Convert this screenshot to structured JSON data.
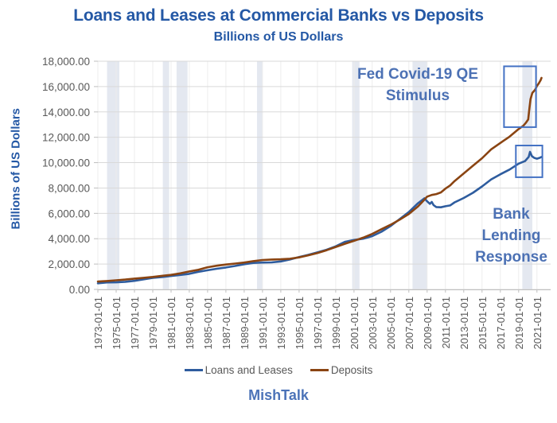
{
  "header": {
    "title": "Loans and Leases at Commercial Banks vs Deposits",
    "subtitle": "Billions of US Dollars"
  },
  "y_axis_title": "Billions of US Dollars",
  "annotations": {
    "fed_qe": "Fed Covid-19 QE\nStimulus",
    "bank_lending": "Bank\nLending\nResponse"
  },
  "footer": {
    "brand": "MishTalk"
  },
  "chart_data": {
    "type": "line",
    "title": "Loans and Leases at Commercial Banks vs Deposits",
    "subtitle": "Billions of US Dollars",
    "xlabel": "",
    "ylabel": "Billions of US Dollars",
    "ylim": [
      0,
      18000
    ],
    "y_tick_step": 2000,
    "y_tick_labels": [
      "0.00",
      "2,000.00",
      "4,000.00",
      "6,000.00",
      "8,000.00",
      "10,000.00",
      "12,000.00",
      "14,000.00",
      "16,000.00",
      "18,000.00"
    ],
    "x_tick_labels": [
      "1973-01-01",
      "1975-01-01",
      "1977-01-01",
      "1979-01-01",
      "1981-01-01",
      "1983-01-01",
      "1985-01-01",
      "1987-01-01",
      "1989-01-01",
      "1991-01-01",
      "1993-01-01",
      "1995-01-01",
      "1997-01-01",
      "1999-01-01",
      "2001-01-01",
      "2003-01-01",
      "2005-01-01",
      "2007-01-01",
      "2009-01-01",
      "2011-01-01",
      "2013-01-01",
      "2015-01-01",
      "2017-01-01",
      "2019-01-01",
      "2021-01-01"
    ],
    "x_tick_start_year": 1973,
    "x_tick_step_years": 2,
    "grid": true,
    "legend_position": "bottom",
    "recession_bands": [
      [
        1974.0,
        1975.35
      ],
      [
        1980.1,
        1980.8
      ],
      [
        1981.6,
        1982.8
      ],
      [
        1990.4,
        1991.0
      ],
      [
        2000.8,
        2001.6
      ],
      [
        2007.4,
        2009.0
      ],
      [
        2019.4,
        2020.5
      ]
    ],
    "callout_boxes": [
      {
        "name": "fed-qe-deposits-spike",
        "x1": 2017.4,
        "x2": 2020.9,
        "y1": 12800,
        "y2": 17600
      },
      {
        "name": "bank-lending-loans-spike",
        "x1": 2018.7,
        "x2": 2021.6,
        "y1": 8850,
        "y2": 11350
      }
    ],
    "series": [
      {
        "name": "Loans and Leases",
        "color": "#2E5C9E",
        "points": [
          [
            1973,
            480
          ],
          [
            1974,
            555
          ],
          [
            1975,
            560
          ],
          [
            1976,
            600
          ],
          [
            1977,
            680
          ],
          [
            1978,
            790
          ],
          [
            1979,
            910
          ],
          [
            1980,
            975
          ],
          [
            1981,
            1060
          ],
          [
            1982,
            1140
          ],
          [
            1983,
            1230
          ],
          [
            1984,
            1390
          ],
          [
            1985,
            1510
          ],
          [
            1986,
            1630
          ],
          [
            1987,
            1730
          ],
          [
            1988,
            1850
          ],
          [
            1989,
            1990
          ],
          [
            1990,
            2090
          ],
          [
            1991,
            2120
          ],
          [
            1992,
            2130
          ],
          [
            1993,
            2210
          ],
          [
            1994,
            2360
          ],
          [
            1995,
            2550
          ],
          [
            1996,
            2730
          ],
          [
            1997,
            2920
          ],
          [
            1998,
            3130
          ],
          [
            1999,
            3400
          ],
          [
            2000,
            3750
          ],
          [
            2001,
            3900
          ],
          [
            2002,
            4000
          ],
          [
            2003,
            4200
          ],
          [
            2004,
            4550
          ],
          [
            2005,
            5000
          ],
          [
            2006,
            5550
          ],
          [
            2007,
            6100
          ],
          [
            2008,
            6800
          ],
          [
            2008.7,
            7190
          ],
          [
            2009,
            6950
          ],
          [
            2009.3,
            6750
          ],
          [
            2009.5,
            6900
          ],
          [
            2009.7,
            6650
          ],
          [
            2010,
            6500
          ],
          [
            2010.5,
            6480
          ],
          [
            2011,
            6560
          ],
          [
            2011.5,
            6620
          ],
          [
            2012,
            6870
          ],
          [
            2013,
            7210
          ],
          [
            2014,
            7620
          ],
          [
            2015,
            8120
          ],
          [
            2016,
            8680
          ],
          [
            2017,
            9080
          ],
          [
            2018,
            9450
          ],
          [
            2019,
            9920
          ],
          [
            2019.7,
            10120
          ],
          [
            2020.1,
            10450
          ],
          [
            2020.25,
            10850
          ],
          [
            2020.45,
            10520
          ],
          [
            2020.7,
            10380
          ],
          [
            2021,
            10310
          ],
          [
            2021.3,
            10380
          ],
          [
            2021.5,
            10450
          ]
        ]
      },
      {
        "name": "Deposits",
        "color": "#8A4412",
        "points": [
          [
            1973,
            620
          ],
          [
            1974,
            665
          ],
          [
            1975,
            720
          ],
          [
            1976,
            780
          ],
          [
            1977,
            850
          ],
          [
            1978,
            915
          ],
          [
            1979,
            985
          ],
          [
            1980,
            1070
          ],
          [
            1981,
            1150
          ],
          [
            1982,
            1270
          ],
          [
            1983,
            1420
          ],
          [
            1984,
            1550
          ],
          [
            1985,
            1750
          ],
          [
            1986,
            1870
          ],
          [
            1987,
            1960
          ],
          [
            1988,
            2040
          ],
          [
            1989,
            2120
          ],
          [
            1990,
            2230
          ],
          [
            1991,
            2320
          ],
          [
            1992,
            2360
          ],
          [
            1993,
            2380
          ],
          [
            1994,
            2420
          ],
          [
            1995,
            2530
          ],
          [
            1996,
            2690
          ],
          [
            1997,
            2870
          ],
          [
            1998,
            3090
          ],
          [
            1999,
            3350
          ],
          [
            2000,
            3600
          ],
          [
            2001,
            3830
          ],
          [
            2002,
            4080
          ],
          [
            2003,
            4380
          ],
          [
            2004,
            4750
          ],
          [
            2005,
            5100
          ],
          [
            2006,
            5500
          ],
          [
            2007,
            5950
          ],
          [
            2008,
            6550
          ],
          [
            2008.7,
            7080
          ],
          [
            2009,
            7320
          ],
          [
            2009.5,
            7450
          ],
          [
            2010,
            7520
          ],
          [
            2010.5,
            7650
          ],
          [
            2011,
            7950
          ],
          [
            2011.5,
            8200
          ],
          [
            2012,
            8550
          ],
          [
            2013,
            9150
          ],
          [
            2014,
            9750
          ],
          [
            2015,
            10350
          ],
          [
            2016,
            11050
          ],
          [
            2017,
            11550
          ],
          [
            2018,
            12050
          ],
          [
            2019,
            12650
          ],
          [
            2019.5,
            12900
          ],
          [
            2019.8,
            13150
          ],
          [
            2020.05,
            13400
          ],
          [
            2020.15,
            14100
          ],
          [
            2020.3,
            15000
          ],
          [
            2020.5,
            15500
          ],
          [
            2020.8,
            15750
          ],
          [
            2021,
            16050
          ],
          [
            2021.2,
            16250
          ],
          [
            2021.4,
            16500
          ],
          [
            2021.5,
            16680
          ]
        ]
      }
    ],
    "colors": {
      "loans": "#2E5C9E",
      "deposits": "#8A4412",
      "recession_band": "#E4E8F0",
      "callout_box": "#4472C4",
      "hgrid": "#D9D9D9",
      "vgrid": "#EDEDED",
      "axis": "#BFBFBF",
      "axis_text": "#595959",
      "title_text": "#2458A5",
      "annotation_text": "#4C71B4"
    }
  }
}
